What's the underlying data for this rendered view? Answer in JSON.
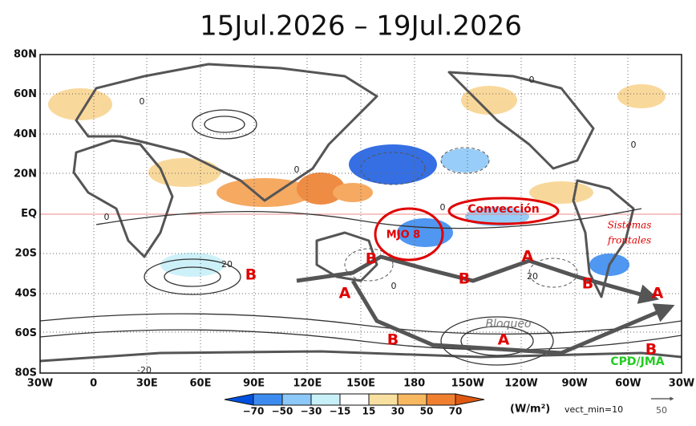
{
  "title": "15Jul.2026 – 19Jul.2026",
  "map": {
    "lon_labels": [
      "30W",
      "0",
      "30E",
      "60E",
      "90E",
      "120E",
      "150E",
      "180",
      "150W",
      "120W",
      "90W",
      "60W",
      "30W"
    ],
    "lat_labels": [
      "80N",
      "60N",
      "40N",
      "20N",
      "EQ",
      "20S",
      "40S",
      "60S",
      "80S"
    ],
    "contour_labels": [
      "0",
      "0",
      "0",
      "0",
      "0",
      "0",
      "0",
      "20",
      "20",
      "-20"
    ],
    "pressure_systems": [
      "B",
      "B",
      "A",
      "B",
      "A",
      "B",
      "A",
      "B",
      "A",
      "B"
    ],
    "convection": "Convección",
    "mjo": "MJO 8",
    "frontal": [
      "Sistemas",
      "frontales"
    ],
    "blocking": "Bloqueo",
    "credit": "CPD/JMA"
  },
  "colorbar": {
    "labels": [
      "−70",
      "−50",
      "−30",
      "−15",
      "15",
      "30",
      "50",
      "70"
    ],
    "units": "(W/m²)",
    "note": "vect_min=10",
    "vector_scale": "50"
  }
}
